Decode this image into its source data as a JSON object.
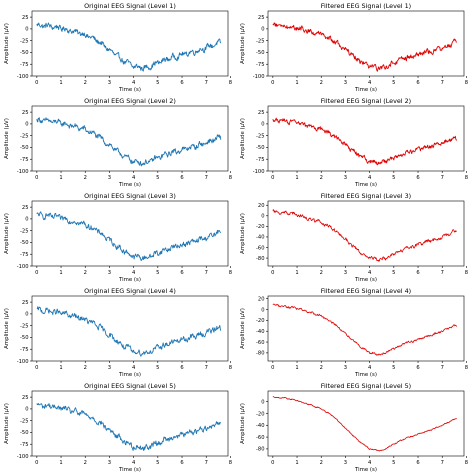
{
  "chart_data": [
    {
      "type": "line",
      "title": "Original EEG Signal (Level 1)",
      "xlabel": "Time (s)",
      "ylabel": "Amplitude (µV)",
      "color": "#1f77b4",
      "xlim": [
        -0.2,
        7.9
      ],
      "ylim": [
        -100,
        38
      ],
      "xticks": [
        0,
        1,
        2,
        3,
        4,
        5,
        6,
        7,
        8
      ],
      "yticks": [
        -100,
        -75,
        -50,
        -25,
        0,
        25
      ],
      "duration": 7.6,
      "noise": 9,
      "shape": [
        [
          0,
          8
        ],
        [
          0.5,
          6
        ],
        [
          1,
          2
        ],
        [
          1.5,
          -5
        ],
        [
          2,
          -12
        ],
        [
          2.5,
          -25
        ],
        [
          3,
          -45
        ],
        [
          3.5,
          -65
        ],
        [
          4,
          -80
        ],
        [
          4.5,
          -83
        ],
        [
          5,
          -72
        ],
        [
          5.5,
          -62
        ],
        [
          6,
          -55
        ],
        [
          6.5,
          -48
        ],
        [
          7,
          -40
        ],
        [
          7.5,
          -30
        ]
      ]
    },
    {
      "type": "line",
      "title": "Filtered EEG Signal (Level 1)",
      "xlabel": "Time (s)",
      "ylabel": "Amplitude (µV)",
      "color": "#e00000",
      "xlim": [
        -0.2,
        7.9
      ],
      "ylim": [
        -100,
        38
      ],
      "xticks": [
        0,
        1,
        2,
        3,
        4,
        5,
        6,
        7,
        8
      ],
      "yticks": [
        -100,
        -75,
        -50,
        -25,
        0,
        25
      ],
      "duration": 7.6,
      "noise": 8,
      "shape": [
        [
          0,
          8
        ],
        [
          0.5,
          6
        ],
        [
          1,
          2
        ],
        [
          1.5,
          -5
        ],
        [
          2,
          -12
        ],
        [
          2.5,
          -25
        ],
        [
          3,
          -45
        ],
        [
          3.5,
          -65
        ],
        [
          4,
          -80
        ],
        [
          4.5,
          -83
        ],
        [
          5,
          -72
        ],
        [
          5.5,
          -62
        ],
        [
          6,
          -55
        ],
        [
          6.5,
          -48
        ],
        [
          7,
          -40
        ],
        [
          7.5,
          -30
        ]
      ]
    },
    {
      "type": "line",
      "title": "Original EEG Signal (Level 2)",
      "xlabel": "Time (s)",
      "ylabel": "Amplitude (µV)",
      "color": "#1f77b4",
      "xlim": [
        -0.2,
        7.9
      ],
      "ylim": [
        -100,
        38
      ],
      "xticks": [
        0,
        1,
        2,
        3,
        4,
        5,
        6,
        7,
        8
      ],
      "yticks": [
        -100,
        -75,
        -50,
        -25,
        0,
        25
      ],
      "duration": 7.6,
      "noise": 9,
      "shape": [
        [
          0,
          8
        ],
        [
          0.5,
          6
        ],
        [
          1,
          2
        ],
        [
          1.5,
          -5
        ],
        [
          2,
          -12
        ],
        [
          2.5,
          -25
        ],
        [
          3,
          -45
        ],
        [
          3.5,
          -65
        ],
        [
          4,
          -80
        ],
        [
          4.5,
          -83
        ],
        [
          5,
          -72
        ],
        [
          5.5,
          -62
        ],
        [
          6,
          -55
        ],
        [
          6.5,
          -48
        ],
        [
          7,
          -40
        ],
        [
          7.5,
          -30
        ]
      ]
    },
    {
      "type": "line",
      "title": "Filtered EEG Signal (Level 2)",
      "xlabel": "Time (s)",
      "ylabel": "Amplitude (µV)",
      "color": "#e00000",
      "xlim": [
        -0.2,
        7.9
      ],
      "ylim": [
        -100,
        38
      ],
      "xticks": [
        0,
        1,
        2,
        3,
        4,
        5,
        6,
        7,
        8
      ],
      "yticks": [
        -100,
        -75,
        -50,
        -25,
        0,
        25
      ],
      "duration": 7.6,
      "noise": 7,
      "shape": [
        [
          0,
          8
        ],
        [
          0.5,
          6
        ],
        [
          1,
          2
        ],
        [
          1.5,
          -5
        ],
        [
          2,
          -12
        ],
        [
          2.5,
          -25
        ],
        [
          3,
          -45
        ],
        [
          3.5,
          -65
        ],
        [
          4,
          -80
        ],
        [
          4.5,
          -83
        ],
        [
          5,
          -72
        ],
        [
          5.5,
          -62
        ],
        [
          6,
          -55
        ],
        [
          6.5,
          -48
        ],
        [
          7,
          -40
        ],
        [
          7.5,
          -30
        ]
      ]
    },
    {
      "type": "line",
      "title": "Original EEG Signal (Level 3)",
      "xlabel": "Time (s)",
      "ylabel": "Amplitude (µV)",
      "color": "#1f77b4",
      "xlim": [
        -0.2,
        7.9
      ],
      "ylim": [
        -100,
        38
      ],
      "xticks": [
        0,
        1,
        2,
        3,
        4,
        5,
        6,
        7,
        8
      ],
      "yticks": [
        -100,
        -75,
        -50,
        -25,
        0,
        25
      ],
      "duration": 7.6,
      "noise": 9,
      "shape": [
        [
          0,
          8
        ],
        [
          0.5,
          6
        ],
        [
          1,
          2
        ],
        [
          1.5,
          -5
        ],
        [
          2,
          -12
        ],
        [
          2.5,
          -25
        ],
        [
          3,
          -45
        ],
        [
          3.5,
          -65
        ],
        [
          4,
          -80
        ],
        [
          4.5,
          -83
        ],
        [
          5,
          -72
        ],
        [
          5.5,
          -62
        ],
        [
          6,
          -55
        ],
        [
          6.5,
          -48
        ],
        [
          7,
          -40
        ],
        [
          7.5,
          -30
        ]
      ]
    },
    {
      "type": "line",
      "title": "Filtered EEG Signal (Level 3)",
      "xlabel": "Time (s)",
      "ylabel": "Amplitude (µV)",
      "color": "#e00000",
      "xlim": [
        -0.2,
        7.9
      ],
      "ylim": [
        -95,
        28
      ],
      "xticks": [
        0,
        1,
        2,
        3,
        4,
        5,
        6,
        7,
        8
      ],
      "yticks": [
        -80,
        -60,
        -40,
        -20,
        0,
        20
      ],
      "duration": 7.6,
      "noise": 5,
      "shape": [
        [
          0,
          8
        ],
        [
          0.5,
          6
        ],
        [
          1,
          2
        ],
        [
          1.5,
          -5
        ],
        [
          2,
          -12
        ],
        [
          2.5,
          -25
        ],
        [
          3,
          -45
        ],
        [
          3.5,
          -65
        ],
        [
          4,
          -80
        ],
        [
          4.5,
          -83
        ],
        [
          5,
          -72
        ],
        [
          5.5,
          -62
        ],
        [
          6,
          -55
        ],
        [
          6.5,
          -48
        ],
        [
          7,
          -40
        ],
        [
          7.5,
          -30
        ]
      ]
    },
    {
      "type": "line",
      "title": "Original EEG Signal (Level 4)",
      "xlabel": "Time (s)",
      "ylabel": "Amplitude (µV)",
      "color": "#1f77b4",
      "xlim": [
        -0.2,
        7.9
      ],
      "ylim": [
        -100,
        38
      ],
      "xticks": [
        0,
        1,
        2,
        3,
        4,
        5,
        6,
        7,
        8
      ],
      "yticks": [
        -100,
        -75,
        -50,
        -25,
        0,
        25
      ],
      "duration": 7.6,
      "noise": 9,
      "shape": [
        [
          0,
          8
        ],
        [
          0.5,
          6
        ],
        [
          1,
          2
        ],
        [
          1.5,
          -5
        ],
        [
          2,
          -12
        ],
        [
          2.5,
          -25
        ],
        [
          3,
          -45
        ],
        [
          3.5,
          -65
        ],
        [
          4,
          -80
        ],
        [
          4.5,
          -83
        ],
        [
          5,
          -72
        ],
        [
          5.5,
          -62
        ],
        [
          6,
          -55
        ],
        [
          6.5,
          -48
        ],
        [
          7,
          -40
        ],
        [
          7.5,
          -30
        ]
      ]
    },
    {
      "type": "line",
      "title": "Filtered EEG Signal (Level 4)",
      "xlabel": "Time (s)",
      "ylabel": "Amplitude (µV)",
      "color": "#e00000",
      "xlim": [
        -0.2,
        7.9
      ],
      "ylim": [
        -95,
        25
      ],
      "xticks": [
        0,
        1,
        2,
        3,
        4,
        5,
        6,
        7,
        8
      ],
      "yticks": [
        -80,
        -60,
        -40,
        -20,
        0,
        20
      ],
      "duration": 7.6,
      "noise": 3,
      "shape": [
        [
          0,
          8
        ],
        [
          0.5,
          6
        ],
        [
          1,
          2
        ],
        [
          1.5,
          -5
        ],
        [
          2,
          -12
        ],
        [
          2.5,
          -25
        ],
        [
          3,
          -45
        ],
        [
          3.5,
          -65
        ],
        [
          4,
          -80
        ],
        [
          4.5,
          -83
        ],
        [
          5,
          -72
        ],
        [
          5.5,
          -62
        ],
        [
          6,
          -55
        ],
        [
          6.5,
          -48
        ],
        [
          7,
          -40
        ],
        [
          7.5,
          -30
        ]
      ]
    },
    {
      "type": "line",
      "title": "Original EEG Signal (Level 5)",
      "xlabel": "Time (s)",
      "ylabel": "Amplitude (µV)",
      "color": "#1f77b4",
      "xlim": [
        -0.2,
        7.9
      ],
      "ylim": [
        -100,
        38
      ],
      "xticks": [
        0,
        1,
        2,
        3,
        4,
        5,
        6,
        7,
        8
      ],
      "yticks": [
        -100,
        -75,
        -50,
        -25,
        0,
        25
      ],
      "duration": 7.6,
      "noise": 9,
      "shape": [
        [
          0,
          8
        ],
        [
          0.5,
          6
        ],
        [
          1,
          2
        ],
        [
          1.5,
          -5
        ],
        [
          2,
          -12
        ],
        [
          2.5,
          -25
        ],
        [
          3,
          -45
        ],
        [
          3.5,
          -65
        ],
        [
          4,
          -80
        ],
        [
          4.5,
          -83
        ],
        [
          5,
          -72
        ],
        [
          5.5,
          -62
        ],
        [
          6,
          -55
        ],
        [
          6.5,
          -48
        ],
        [
          7,
          -40
        ],
        [
          7.5,
          -30
        ]
      ]
    },
    {
      "type": "line",
      "title": "Filtered EEG Signal (Level 5)",
      "xlabel": "Time (s)",
      "ylabel": "Amplitude (µV)",
      "color": "#e00000",
      "xlim": [
        -0.2,
        7.9
      ],
      "ylim": [
        -92,
        18
      ],
      "xticks": [
        0,
        1,
        2,
        3,
        4,
        5,
        6,
        7,
        8
      ],
      "yticks": [
        -80,
        -60,
        -40,
        -20,
        0
      ],
      "duration": 7.6,
      "noise": 1.5,
      "shape": [
        [
          0,
          8
        ],
        [
          0.5,
          6
        ],
        [
          1,
          2
        ],
        [
          1.5,
          -5
        ],
        [
          2,
          -12
        ],
        [
          2.5,
          -25
        ],
        [
          3,
          -45
        ],
        [
          3.5,
          -65
        ],
        [
          4,
          -80
        ],
        [
          4.5,
          -83
        ],
        [
          5,
          -72
        ],
        [
          5.5,
          -62
        ],
        [
          6,
          -55
        ],
        [
          6.5,
          -48
        ],
        [
          7,
          -40
        ],
        [
          7.5,
          -30
        ]
      ]
    }
  ]
}
